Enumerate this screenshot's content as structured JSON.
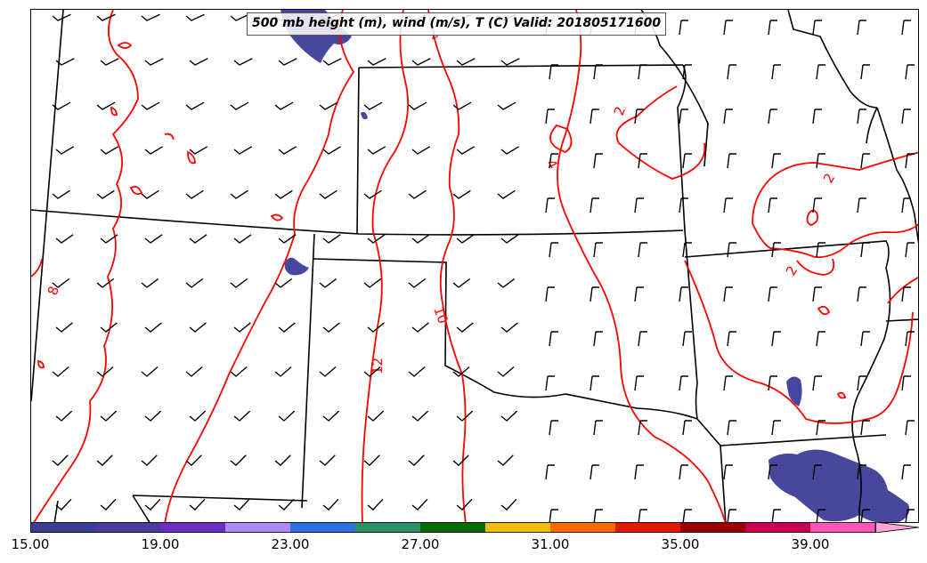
{
  "title": "500 mb height (m), wind (m/s), T (C) Valid: 201805171600",
  "colorbar": {
    "colors": [
      "#3b3f93",
      "#4b3a9c",
      "#6a2fc0",
      "#a98cf3",
      "#2f6fe0",
      "#2e9166",
      "#046b0a",
      "#f1bd0a",
      "#ff6a00",
      "#e11a00",
      "#9a0002",
      "#c8004f",
      "#ff57b5",
      "#ffa3d9"
    ],
    "tick_labels": [
      "15.00",
      "19.00",
      "23.00",
      "27.00",
      "31.00",
      "35.00",
      "39.00"
    ]
  },
  "contours": {
    "color": "#ff0000",
    "labels": [
      "2",
      "2",
      "4",
      "2",
      "2",
      "8",
      "10",
      "12"
    ]
  },
  "shading": {
    "color": "#3d3d99"
  },
  "borders": {
    "color": "#000000"
  },
  "wind_barbs": {
    "color": "#000000"
  }
}
